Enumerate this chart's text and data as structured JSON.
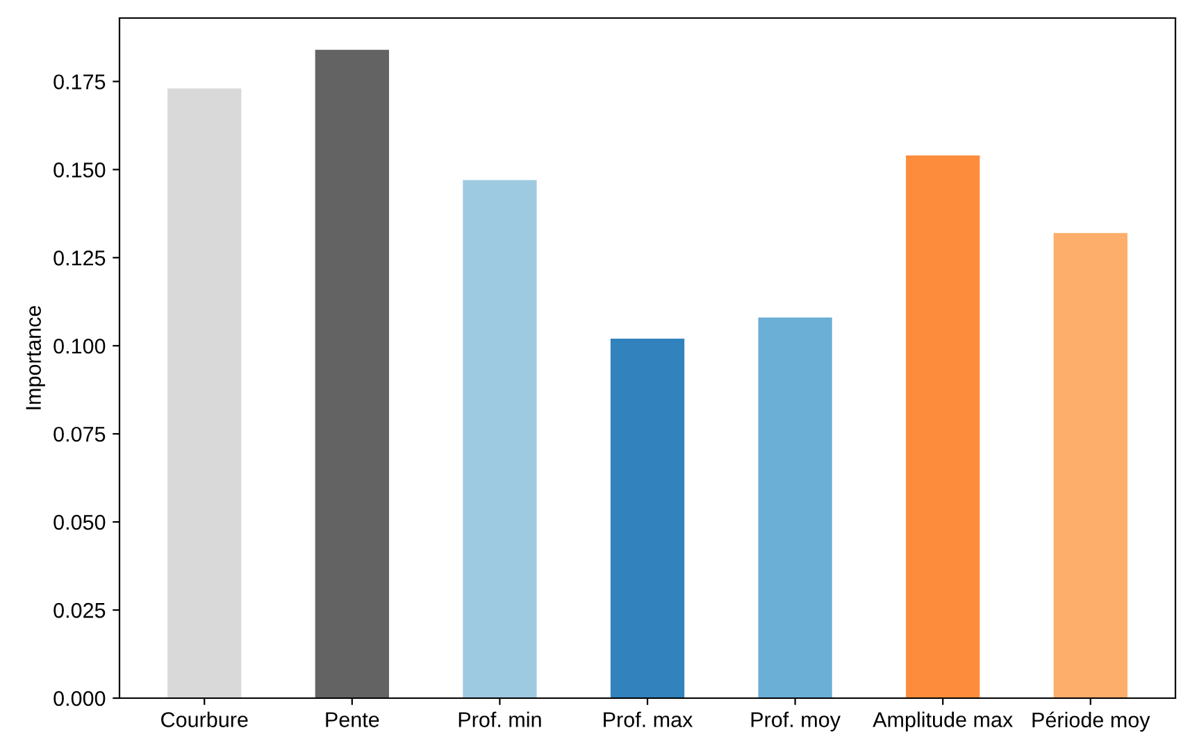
{
  "chart_data": {
    "type": "bar",
    "ylabel": "Importance",
    "categories": [
      "Courbure",
      "Pente",
      "Prof. min",
      "Prof. max",
      "Prof. moy",
      "Amplitude max",
      "Période moy"
    ],
    "values": [
      0.173,
      0.184,
      0.147,
      0.102,
      0.108,
      0.154,
      0.132
    ],
    "colors": [
      "#d9d9d9",
      "#636363",
      "#9ecae1",
      "#3182bd",
      "#6baed6",
      "#fd8d3c",
      "#fdae6b"
    ],
    "ylim": [
      0,
      0.193
    ],
    "yticks": [
      {
        "value": 0,
        "label": "0.000"
      },
      {
        "value": 0.025,
        "label": "0.025"
      },
      {
        "value": 0.05,
        "label": "0.050"
      },
      {
        "value": 0.075,
        "label": "0.075"
      },
      {
        "value": 0.1,
        "label": "0.100"
      },
      {
        "value": 0.125,
        "label": "0.125"
      },
      {
        "value": 0.15,
        "label": "0.150"
      },
      {
        "value": 0.175,
        "label": "0.175"
      }
    ],
    "grid": false
  }
}
